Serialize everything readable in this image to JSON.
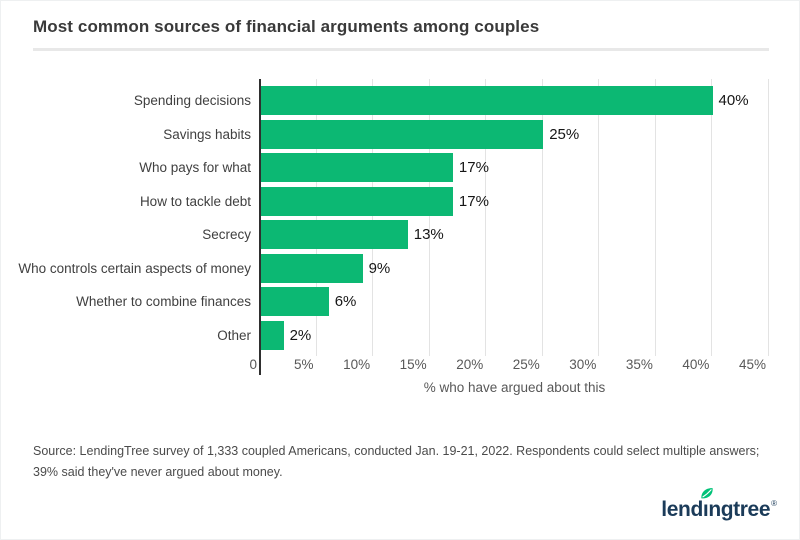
{
  "header": {
    "title": "Most common sources of financial arguments among couples"
  },
  "chart_data": {
    "type": "bar",
    "orientation": "horizontal",
    "title": "Most common sources of financial arguments among couples",
    "categories": [
      "Spending decisions",
      "Savings habits",
      "Who pays for what",
      "How to tackle debt",
      "Secrecy",
      "Who controls certain aspects of money",
      "Whether to combine finances",
      "Other"
    ],
    "values": [
      40,
      25,
      17,
      17,
      13,
      9,
      6,
      2
    ],
    "value_labels": [
      "40%",
      "25%",
      "17%",
      "17%",
      "13%",
      "9%",
      "6%",
      "2%"
    ],
    "x_ticks": [
      "0",
      "5%",
      "10%",
      "15%",
      "20%",
      "25%",
      "30%",
      "35%",
      "40%",
      "45%"
    ],
    "xlim": [
      0,
      45
    ],
    "xlabel": "% who have argued about this",
    "ylabel": "",
    "grid": true,
    "legend": false,
    "bar_color": "#0cb873"
  },
  "footer": {
    "source_line1": "Source: LendingTree survey of 1,333 coupled Americans, conducted Jan. 19-21, 2022. Respondents could select multiple answers;",
    "source_line2": "39% said they've never argued about money."
  },
  "logo": {
    "word_pre": "lend",
    "word_i": "ı",
    "word_post": "ngtree",
    "registered_mark": "®",
    "navy": "#1b3b59",
    "leaf_green": "#00c278"
  }
}
